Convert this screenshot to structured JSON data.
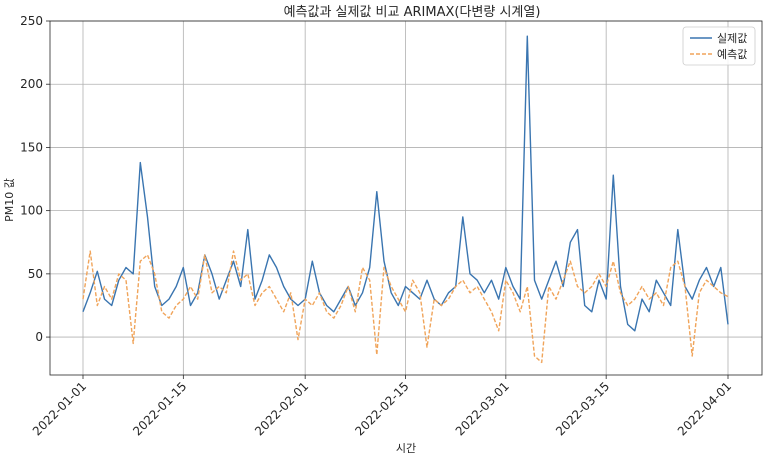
{
  "chart_data": {
    "type": "line",
    "title": "예측값과 실제값 비교 ARIMAX(다변량 시계열)",
    "xlabel": "시간",
    "ylabel": "PM10 값",
    "x_ticks": [
      "2022-01-01",
      "2022-01-15",
      "2022-02-01",
      "2022-02-15",
      "2022-03-01",
      "2022-03-15",
      "2022-04-01"
    ],
    "x_start": "2022-01-01",
    "x_end": "2022-04-01",
    "y_ticks": [
      0,
      50,
      100,
      150,
      200,
      250
    ],
    "ylim": [
      -30,
      250
    ],
    "grid": true,
    "legend_position": "top-right",
    "series": [
      {
        "name": "실제값",
        "color": "#3a75b0",
        "style": "solid",
        "points": [
          [
            "2022-01-01",
            20
          ],
          [
            "2022-01-02",
            35
          ],
          [
            "2022-01-03",
            52
          ],
          [
            "2022-01-04",
            30
          ],
          [
            "2022-01-05",
            25
          ],
          [
            "2022-01-06",
            45
          ],
          [
            "2022-01-07",
            55
          ],
          [
            "2022-01-08",
            50
          ],
          [
            "2022-01-09",
            138
          ],
          [
            "2022-01-10",
            95
          ],
          [
            "2022-01-11",
            40
          ],
          [
            "2022-01-12",
            25
          ],
          [
            "2022-01-13",
            30
          ],
          [
            "2022-01-14",
            40
          ],
          [
            "2022-01-15",
            55
          ],
          [
            "2022-01-16",
            25
          ],
          [
            "2022-01-17",
            35
          ],
          [
            "2022-01-18",
            65
          ],
          [
            "2022-01-19",
            50
          ],
          [
            "2022-01-20",
            30
          ],
          [
            "2022-01-21",
            45
          ],
          [
            "2022-01-22",
            60
          ],
          [
            "2022-01-23",
            40
          ],
          [
            "2022-01-24",
            85
          ],
          [
            "2022-01-25",
            30
          ],
          [
            "2022-01-26",
            45
          ],
          [
            "2022-01-27",
            65
          ],
          [
            "2022-01-28",
            55
          ],
          [
            "2022-01-29",
            40
          ],
          [
            "2022-01-30",
            30
          ],
          [
            "2022-01-31",
            25
          ],
          [
            "2022-02-01",
            30
          ],
          [
            "2022-02-02",
            60
          ],
          [
            "2022-02-03",
            35
          ],
          [
            "2022-02-04",
            25
          ],
          [
            "2022-02-05",
            20
          ],
          [
            "2022-02-06",
            30
          ],
          [
            "2022-02-07",
            40
          ],
          [
            "2022-02-08",
            25
          ],
          [
            "2022-02-09",
            35
          ],
          [
            "2022-02-10",
            55
          ],
          [
            "2022-02-11",
            115
          ],
          [
            "2022-02-12",
            60
          ],
          [
            "2022-02-13",
            35
          ],
          [
            "2022-02-14",
            25
          ],
          [
            "2022-02-15",
            40
          ],
          [
            "2022-02-16",
            35
          ],
          [
            "2022-02-17",
            30
          ],
          [
            "2022-02-18",
            45
          ],
          [
            "2022-02-19",
            30
          ],
          [
            "2022-02-20",
            25
          ],
          [
            "2022-02-21",
            35
          ],
          [
            "2022-02-22",
            40
          ],
          [
            "2022-02-23",
            95
          ],
          [
            "2022-02-24",
            50
          ],
          [
            "2022-02-25",
            45
          ],
          [
            "2022-02-26",
            35
          ],
          [
            "2022-02-27",
            45
          ],
          [
            "2022-02-28",
            30
          ],
          [
            "2022-03-01",
            55
          ],
          [
            "2022-03-02",
            40
          ],
          [
            "2022-03-03",
            30
          ],
          [
            "2022-03-04",
            238
          ],
          [
            "2022-03-05",
            45
          ],
          [
            "2022-03-06",
            30
          ],
          [
            "2022-03-07",
            45
          ],
          [
            "2022-03-08",
            60
          ],
          [
            "2022-03-09",
            40
          ],
          [
            "2022-03-10",
            75
          ],
          [
            "2022-03-11",
            85
          ],
          [
            "2022-03-12",
            25
          ],
          [
            "2022-03-13",
            20
          ],
          [
            "2022-03-14",
            45
          ],
          [
            "2022-03-15",
            30
          ],
          [
            "2022-03-16",
            128
          ],
          [
            "2022-03-17",
            40
          ],
          [
            "2022-03-18",
            10
          ],
          [
            "2022-03-19",
            5
          ],
          [
            "2022-03-20",
            30
          ],
          [
            "2022-03-21",
            20
          ],
          [
            "2022-03-22",
            45
          ],
          [
            "2022-03-23",
            35
          ],
          [
            "2022-03-24",
            25
          ],
          [
            "2022-03-25",
            85
          ],
          [
            "2022-03-26",
            40
          ],
          [
            "2022-03-27",
            30
          ],
          [
            "2022-03-28",
            45
          ],
          [
            "2022-03-29",
            55
          ],
          [
            "2022-03-30",
            40
          ],
          [
            "2022-03-31",
            55
          ],
          [
            "2022-04-01",
            10
          ]
        ]
      },
      {
        "name": "예측값",
        "color": "#f0a45a",
        "style": "dashed",
        "points": [
          [
            "2022-01-01",
            30
          ],
          [
            "2022-01-02",
            68
          ],
          [
            "2022-01-03",
            25
          ],
          [
            "2022-01-04",
            40
          ],
          [
            "2022-01-05",
            30
          ],
          [
            "2022-01-06",
            50
          ],
          [
            "2022-01-07",
            45
          ],
          [
            "2022-01-08",
            -5
          ],
          [
            "2022-01-09",
            60
          ],
          [
            "2022-01-10",
            65
          ],
          [
            "2022-01-11",
            50
          ],
          [
            "2022-01-12",
            20
          ],
          [
            "2022-01-13",
            15
          ],
          [
            "2022-01-14",
            25
          ],
          [
            "2022-01-15",
            30
          ],
          [
            "2022-01-16",
            40
          ],
          [
            "2022-01-17",
            30
          ],
          [
            "2022-01-18",
            65
          ],
          [
            "2022-01-19",
            35
          ],
          [
            "2022-01-20",
            40
          ],
          [
            "2022-01-21",
            35
          ],
          [
            "2022-01-22",
            68
          ],
          [
            "2022-01-23",
            45
          ],
          [
            "2022-01-24",
            50
          ],
          [
            "2022-01-25",
            25
          ],
          [
            "2022-01-26",
            35
          ],
          [
            "2022-01-27",
            40
          ],
          [
            "2022-01-28",
            30
          ],
          [
            "2022-01-29",
            20
          ],
          [
            "2022-01-30",
            35
          ],
          [
            "2022-01-31",
            -2
          ],
          [
            "2022-02-01",
            30
          ],
          [
            "2022-02-02",
            25
          ],
          [
            "2022-02-03",
            35
          ],
          [
            "2022-02-04",
            20
          ],
          [
            "2022-02-05",
            15
          ],
          [
            "2022-02-06",
            25
          ],
          [
            "2022-02-07",
            40
          ],
          [
            "2022-02-08",
            20
          ],
          [
            "2022-02-09",
            55
          ],
          [
            "2022-02-10",
            45
          ],
          [
            "2022-02-11",
            -14
          ],
          [
            "2022-02-12",
            55
          ],
          [
            "2022-02-13",
            40
          ],
          [
            "2022-02-14",
            30
          ],
          [
            "2022-02-15",
            20
          ],
          [
            "2022-02-16",
            45
          ],
          [
            "2022-02-17",
            35
          ],
          [
            "2022-02-18",
            -8
          ],
          [
            "2022-02-19",
            30
          ],
          [
            "2022-02-20",
            25
          ],
          [
            "2022-02-21",
            30
          ],
          [
            "2022-02-22",
            40
          ],
          [
            "2022-02-23",
            45
          ],
          [
            "2022-02-24",
            35
          ],
          [
            "2022-02-25",
            40
          ],
          [
            "2022-02-26",
            30
          ],
          [
            "2022-02-27",
            20
          ],
          [
            "2022-02-28",
            5
          ],
          [
            "2022-03-01",
            45
          ],
          [
            "2022-03-02",
            35
          ],
          [
            "2022-03-03",
            20
          ],
          [
            "2022-03-04",
            40
          ],
          [
            "2022-03-05",
            -15
          ],
          [
            "2022-03-06",
            -20
          ],
          [
            "2022-03-07",
            40
          ],
          [
            "2022-03-08",
            30
          ],
          [
            "2022-03-09",
            45
          ],
          [
            "2022-03-10",
            60
          ],
          [
            "2022-03-11",
            40
          ],
          [
            "2022-03-12",
            35
          ],
          [
            "2022-03-13",
            40
          ],
          [
            "2022-03-14",
            50
          ],
          [
            "2022-03-15",
            40
          ],
          [
            "2022-03-16",
            60
          ],
          [
            "2022-03-17",
            35
          ],
          [
            "2022-03-18",
            25
          ],
          [
            "2022-03-19",
            30
          ],
          [
            "2022-03-20",
            40
          ],
          [
            "2022-03-21",
            30
          ],
          [
            "2022-03-22",
            35
          ],
          [
            "2022-03-23",
            25
          ],
          [
            "2022-03-24",
            55
          ],
          [
            "2022-03-25",
            60
          ],
          [
            "2022-03-26",
            40
          ],
          [
            "2022-03-27",
            -15
          ],
          [
            "2022-03-28",
            35
          ],
          [
            "2022-03-29",
            45
          ],
          [
            "2022-03-30",
            40
          ],
          [
            "2022-03-31",
            35
          ],
          [
            "2022-04-01",
            32
          ]
        ]
      }
    ]
  }
}
